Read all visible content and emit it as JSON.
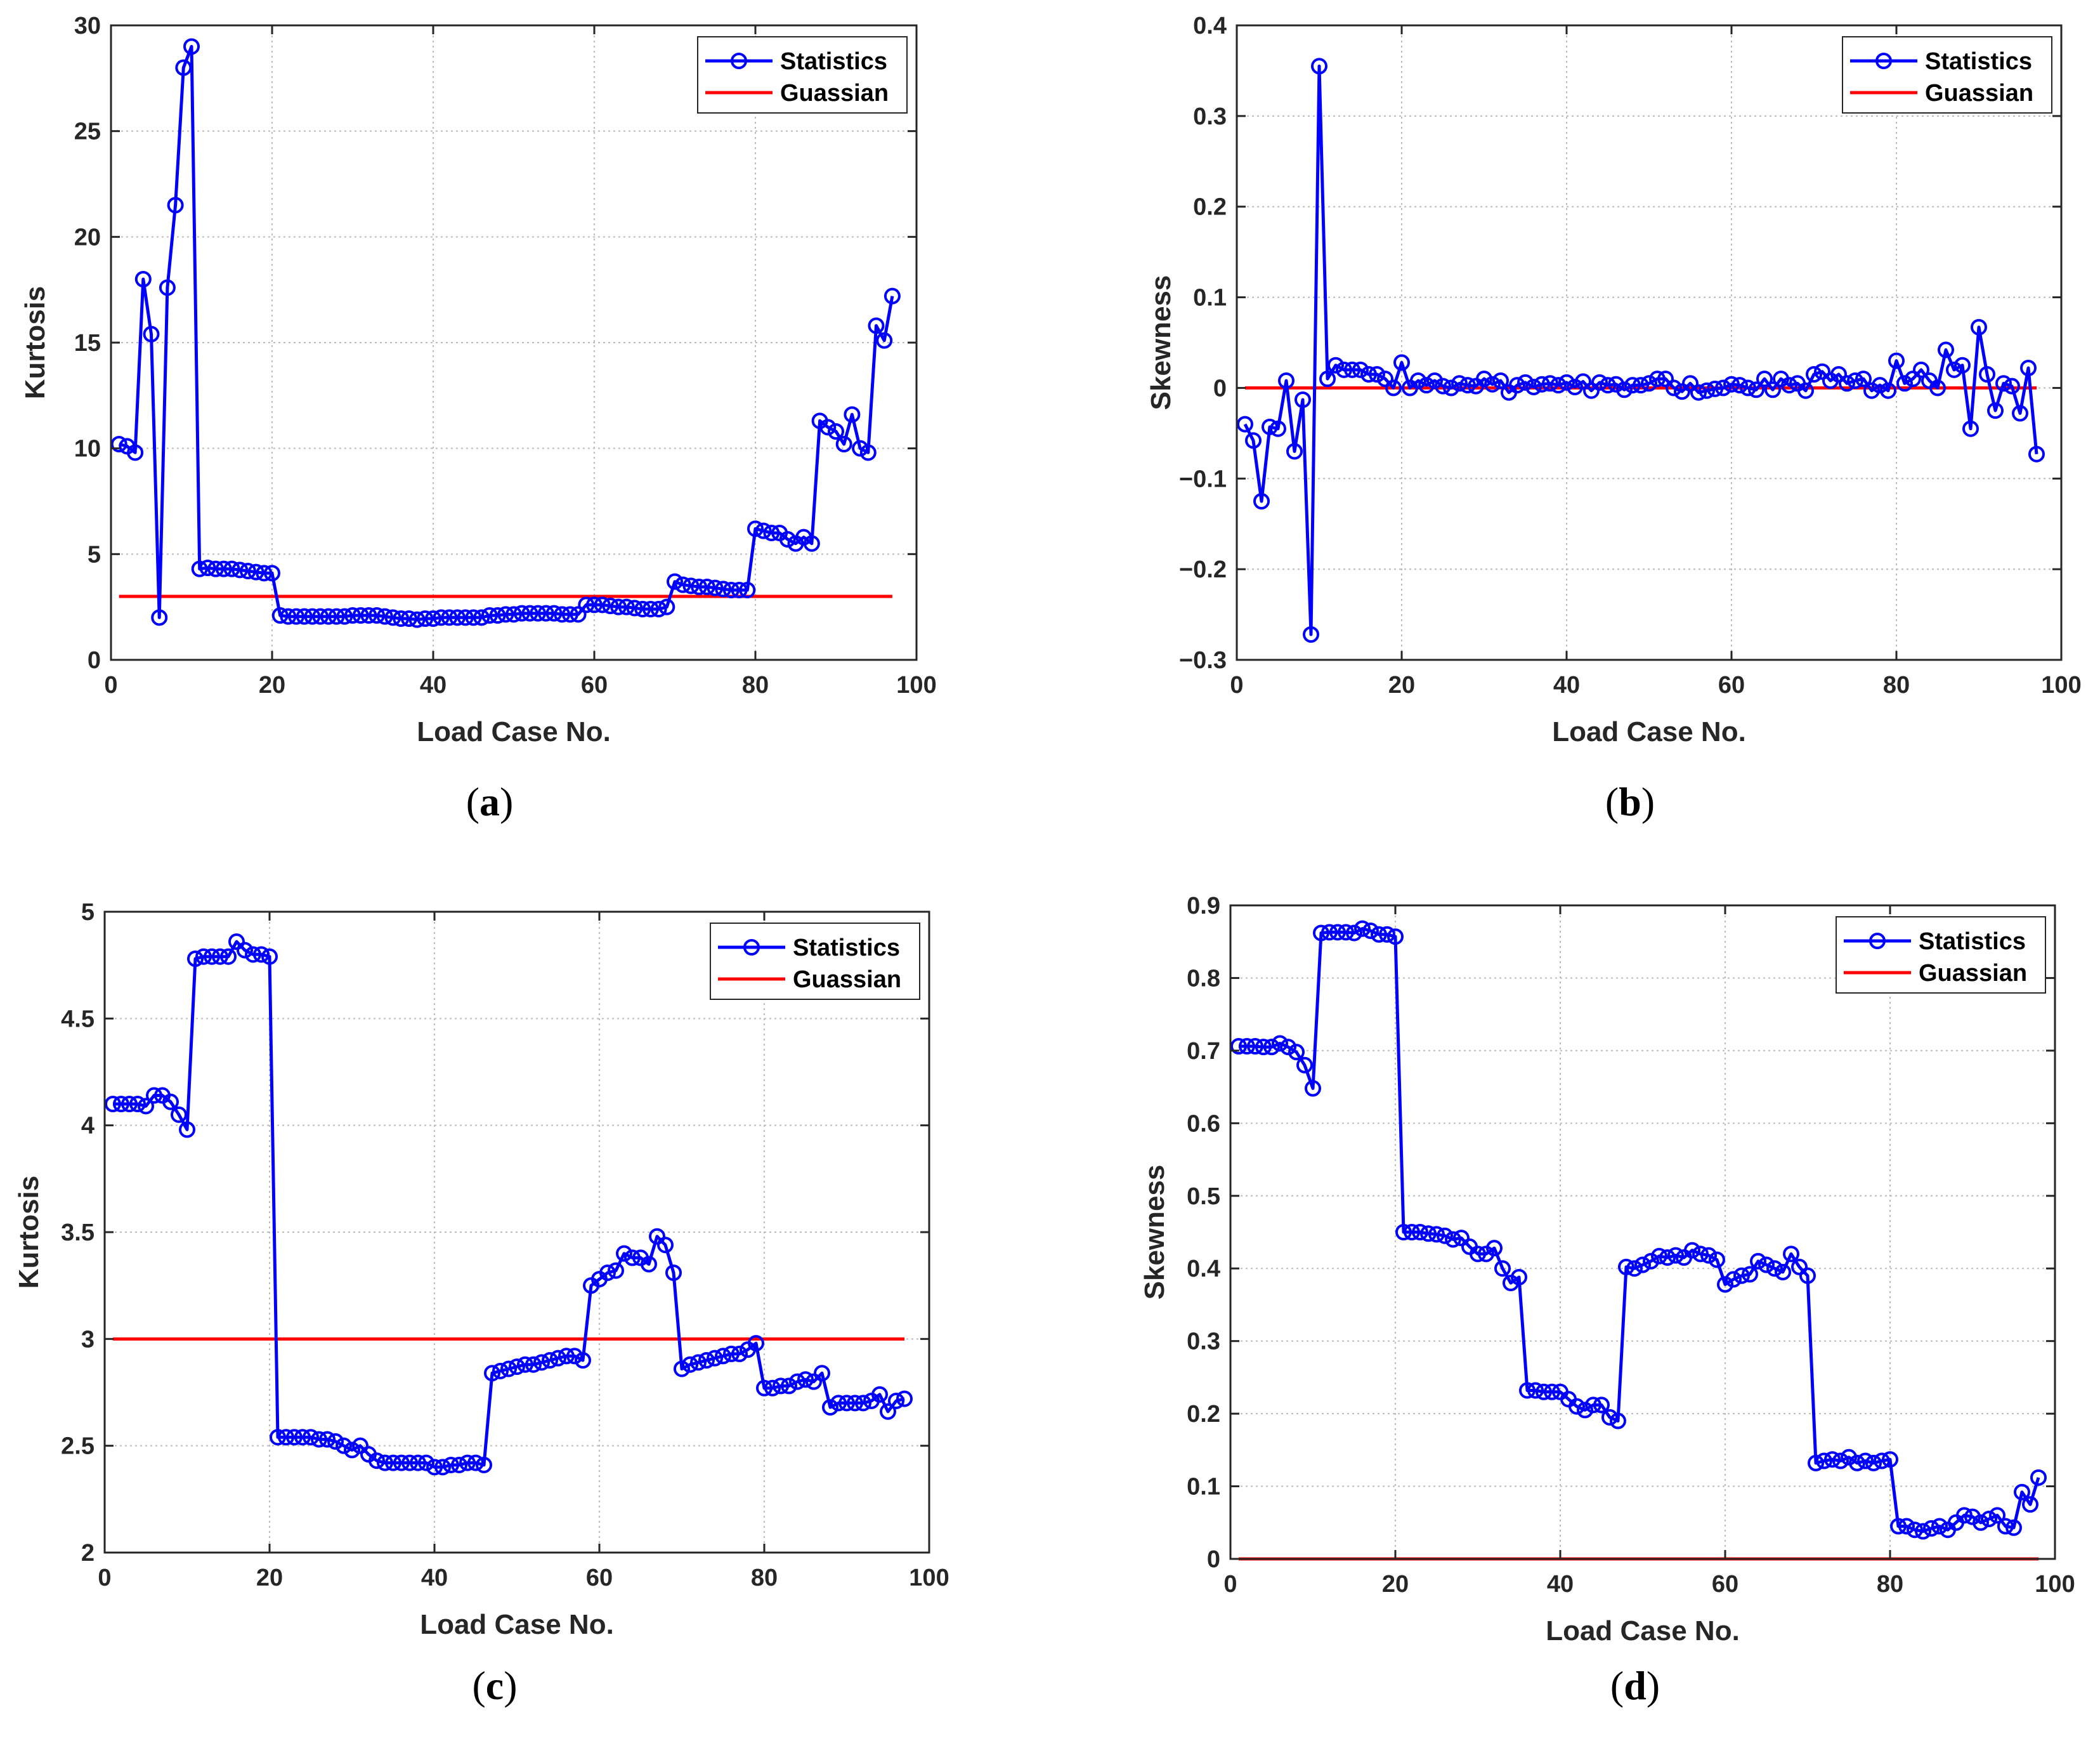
{
  "legend": {
    "series_label": "Statistics",
    "reference_label": "Guassian"
  },
  "colors": {
    "series": "#0000ff",
    "reference": "#ff0000",
    "grid": "#bdbdbd",
    "axis": "#262626"
  },
  "chart_data": [
    {
      "type": "line",
      "panel": "a",
      "panel_label": "a",
      "xlabel": "Load Case No.",
      "ylabel": "Kurtosis",
      "xlim": [
        0,
        100
      ],
      "ylim": [
        0,
        30
      ],
      "xticks": [
        0,
        20,
        40,
        60,
        80,
        100
      ],
      "yticks": [
        0,
        5,
        10,
        15,
        20,
        25,
        30
      ],
      "ytick_labels": [
        "0",
        "5",
        "10",
        "15",
        "20",
        "25",
        "30"
      ],
      "reference_value": 3,
      "series": [
        {
          "name": "Statistics",
          "x_start": 1,
          "values": [
            10.2,
            10.1,
            9.8,
            18.0,
            15.4,
            2.0,
            17.6,
            21.5,
            28.0,
            29.0,
            4.3,
            4.35,
            4.3,
            4.3,
            4.3,
            4.25,
            4.2,
            4.15,
            4.1,
            4.1,
            2.1,
            2.05,
            2.05,
            2.05,
            2.05,
            2.05,
            2.05,
            2.05,
            2.05,
            2.1,
            2.1,
            2.1,
            2.1,
            2.05,
            2.0,
            1.95,
            1.95,
            1.9,
            1.95,
            1.95,
            2.0,
            2.0,
            2.0,
            2.0,
            2.0,
            2.0,
            2.1,
            2.1,
            2.15,
            2.15,
            2.2,
            2.2,
            2.2,
            2.2,
            2.2,
            2.15,
            2.15,
            2.15,
            2.6,
            2.6,
            2.6,
            2.55,
            2.5,
            2.5,
            2.45,
            2.4,
            2.4,
            2.4,
            2.5,
            3.7,
            3.55,
            3.5,
            3.45,
            3.45,
            3.4,
            3.35,
            3.3,
            3.3,
            3.3,
            6.2,
            6.1,
            6.0,
            6.0,
            5.7,
            5.5,
            5.8,
            5.5,
            11.3,
            11.0,
            10.8,
            10.2,
            11.6,
            10.0,
            9.8,
            15.8,
            15.1,
            17.2
          ]
        }
      ]
    },
    {
      "type": "line",
      "panel": "b",
      "panel_label": "b",
      "xlabel": "Load Case No.",
      "ylabel": "Skewness",
      "xlim": [
        0,
        100
      ],
      "ylim": [
        -0.3,
        0.4
      ],
      "xticks": [
        0,
        20,
        40,
        60,
        80,
        100
      ],
      "yticks": [
        -0.3,
        -0.2,
        -0.1,
        0,
        0.1,
        0.2,
        0.3,
        0.4
      ],
      "ytick_labels": [
        "−0.3",
        "−0.2",
        "−0.1",
        "0",
        "0.1",
        "0.2",
        "0.3",
        "0.4"
      ],
      "reference_value": 0,
      "series": [
        {
          "name": "Statistics",
          "x_start": 1,
          "values": [
            -0.04,
            -0.058,
            -0.125,
            -0.043,
            -0.045,
            0.008,
            -0.07,
            -0.013,
            -0.272,
            0.355,
            0.01,
            0.025,
            0.02,
            0.02,
            0.02,
            0.015,
            0.015,
            0.01,
            0.0,
            0.028,
            0.0,
            0.008,
            0.003,
            0.008,
            0.002,
            0.0,
            0.005,
            0.003,
            0.002,
            0.01,
            0.004,
            0.008,
            -0.005,
            0.003,
            0.006,
            0.001,
            0.004,
            0.005,
            0.003,
            0.006,
            0.001,
            0.007,
            -0.003,
            0.006,
            0.003,
            0.004,
            -0.002,
            0.003,
            0.003,
            0.005,
            0.01,
            0.01,
            0.0,
            -0.004,
            0.005,
            -0.005,
            -0.003,
            -0.001,
            0.0,
            0.004,
            0.003,
            0.0,
            -0.002,
            0.01,
            -0.002,
            0.01,
            0.003,
            0.005,
            -0.003,
            0.015,
            0.018,
            0.008,
            0.015,
            0.005,
            0.008,
            0.01,
            -0.003,
            0.003,
            -0.003,
            0.03,
            0.005,
            0.01,
            0.02,
            0.008,
            0.0,
            0.042,
            0.02,
            0.025,
            -0.045,
            0.067,
            0.015,
            -0.025,
            0.005,
            0.002,
            -0.028,
            0.022,
            -0.073
          ]
        }
      ]
    },
    {
      "type": "line",
      "panel": "c",
      "panel_label": "c",
      "xlabel": "Load Case No.",
      "ylabel": "Kurtosis",
      "xlim": [
        0,
        100
      ],
      "ylim": [
        2,
        5
      ],
      "xticks": [
        0,
        20,
        40,
        60,
        80,
        100
      ],
      "yticks": [
        2,
        2.5,
        3,
        3.5,
        4,
        4.5,
        5
      ],
      "ytick_labels": [
        "2",
        "2.5",
        "3",
        "3.5",
        "4",
        "4.5",
        "5"
      ],
      "reference_value": 3,
      "series": [
        {
          "name": "Statistics",
          "x_start": 1,
          "values": [
            4.1,
            4.1,
            4.1,
            4.1,
            4.09,
            4.14,
            4.14,
            4.11,
            4.05,
            3.98,
            4.78,
            4.79,
            4.79,
            4.79,
            4.79,
            4.86,
            4.82,
            4.8,
            4.8,
            4.79,
            2.54,
            2.54,
            2.54,
            2.54,
            2.54,
            2.53,
            2.53,
            2.52,
            2.5,
            2.48,
            2.5,
            2.46,
            2.43,
            2.42,
            2.42,
            2.42,
            2.42,
            2.42,
            2.42,
            2.4,
            2.4,
            2.41,
            2.41,
            2.42,
            2.42,
            2.41,
            2.84,
            2.85,
            2.86,
            2.87,
            2.88,
            2.88,
            2.89,
            2.9,
            2.91,
            2.92,
            2.92,
            2.9,
            3.25,
            3.28,
            3.31,
            3.32,
            3.4,
            3.38,
            3.38,
            3.35,
            3.48,
            3.44,
            3.31,
            2.86,
            2.88,
            2.89,
            2.9,
            2.91,
            2.92,
            2.93,
            2.93,
            2.95,
            2.98,
            2.77,
            2.77,
            2.78,
            2.78,
            2.8,
            2.81,
            2.8,
            2.84,
            2.68,
            2.7,
            2.7,
            2.7,
            2.7,
            2.71,
            2.74,
            2.66,
            2.71,
            2.72
          ]
        }
      ]
    },
    {
      "type": "line",
      "panel": "d",
      "panel_label": "d",
      "xlabel": "Load Case No.",
      "ylabel": "Skewness",
      "xlim": [
        0,
        100
      ],
      "ylim": [
        0,
        0.9
      ],
      "xticks": [
        0,
        20,
        40,
        60,
        80,
        100
      ],
      "yticks": [
        0,
        0.1,
        0.2,
        0.3,
        0.4,
        0.5,
        0.6,
        0.7,
        0.8,
        0.9
      ],
      "ytick_labels": [
        "0",
        "0.1",
        "0.2",
        "0.3",
        "0.4",
        "0.5",
        "0.6",
        "0.7",
        "0.8",
        "0.9"
      ],
      "reference_value": 0,
      "series": [
        {
          "name": "Statistics",
          "x_start": 1,
          "values": [
            0.706,
            0.706,
            0.706,
            0.705,
            0.705,
            0.71,
            0.705,
            0.698,
            0.68,
            0.648,
            0.862,
            0.863,
            0.863,
            0.863,
            0.862,
            0.868,
            0.865,
            0.86,
            0.86,
            0.857,
            0.45,
            0.45,
            0.45,
            0.448,
            0.447,
            0.445,
            0.44,
            0.442,
            0.43,
            0.42,
            0.42,
            0.428,
            0.4,
            0.38,
            0.388,
            0.232,
            0.232,
            0.23,
            0.23,
            0.23,
            0.22,
            0.21,
            0.205,
            0.212,
            0.212,
            0.195,
            0.19,
            0.402,
            0.4,
            0.405,
            0.41,
            0.417,
            0.415,
            0.418,
            0.415,
            0.425,
            0.42,
            0.418,
            0.412,
            0.378,
            0.385,
            0.39,
            0.392,
            0.41,
            0.405,
            0.4,
            0.395,
            0.42,
            0.402,
            0.39,
            0.132,
            0.135,
            0.137,
            0.135,
            0.14,
            0.132,
            0.135,
            0.132,
            0.135,
            0.137,
            0.045,
            0.045,
            0.04,
            0.038,
            0.042,
            0.045,
            0.04,
            0.05,
            0.06,
            0.058,
            0.05,
            0.055,
            0.06,
            0.045,
            0.043,
            0.092,
            0.075,
            0.112
          ]
        }
      ]
    }
  ]
}
